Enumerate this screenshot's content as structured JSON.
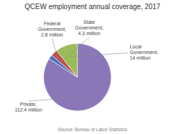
{
  "chart_data": {
    "type": "pie",
    "title": "QCEW employment annual coverage, 2017",
    "categories": [
      "Private,\n112.4 million",
      "Federal\nGovernment,\n2.8 million",
      "State\nGovernment,\n4.3 million",
      "Local\nGovernment,\n14 million"
    ],
    "values": [
      112.4,
      2.8,
      4.3,
      14.0
    ],
    "colors": [
      "#8B77B8",
      "#4472C4",
      "#C0504D",
      "#9BBB59"
    ],
    "annotations": [
      "Source: Bureau of Labor Statistics"
    ]
  }
}
